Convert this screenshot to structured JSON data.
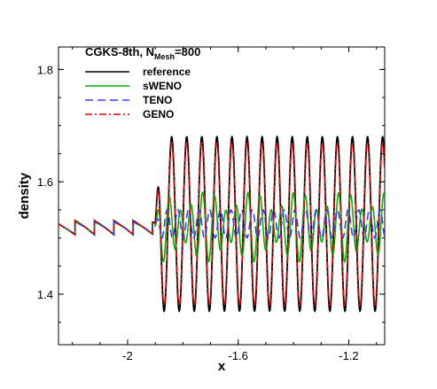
{
  "chart_data": {
    "type": "line",
    "legend_title": {
      "main": "CGKS-8th, N",
      "sub": "Mesh",
      "tail": "=800"
    },
    "xlabel": "x",
    "ylabel": "density",
    "xlim": [
      -2.25,
      -1.07
    ],
    "ylim": [
      1.31,
      1.84
    ],
    "x_ticks": [
      -2,
      -1.6,
      -1.2
    ],
    "x_tick_labels": [
      "-2",
      "-1.6",
      "-1.2"
    ],
    "y_ticks": [
      1.4,
      1.6,
      1.8
    ],
    "y_tick_labels": [
      "1.4",
      "1.6",
      "1.8"
    ],
    "legend_position": "top-left",
    "shock_x": -1.9,
    "series": [
      {
        "name": "reference",
        "color": "#000000",
        "dash": "solid",
        "pre_shock": {
          "x": [
            -2.25,
            -2.22,
            -2.19,
            -2.19,
            -2.15,
            -2.12,
            -2.12,
            -2.08,
            -2.05,
            -2.05,
            -2.01,
            -1.98,
            -1.98,
            -1.94,
            -1.91,
            -1.91,
            -1.9
          ],
          "y": [
            1.525,
            1.516,
            1.506,
            1.531,
            1.518,
            1.506,
            1.531,
            1.518,
            1.506,
            1.531,
            1.518,
            1.506,
            1.531,
            1.518,
            1.507,
            1.528,
            1.528
          ]
        },
        "post_shock": {
          "amplitude": 0.155,
          "center": 1.525,
          "wavelength": 0.0545,
          "phase": 1.0
        }
      },
      {
        "name": "sWENO",
        "color": "#00b400",
        "dash": "solid",
        "pre_shock": {
          "x": [
            -2.25,
            -2.22,
            -2.19,
            -2.19,
            -2.15,
            -2.12,
            -2.12,
            -2.08,
            -2.05,
            -2.05,
            -2.01,
            -1.98,
            -1.98,
            -1.94,
            -1.91,
            -1.91,
            -1.9
          ],
          "y": [
            1.525,
            1.516,
            1.507,
            1.529,
            1.518,
            1.507,
            1.529,
            1.518,
            1.507,
            1.529,
            1.518,
            1.507,
            1.529,
            1.518,
            1.508,
            1.526,
            1.526
          ]
        },
        "post_shock": {
          "amplitude": 0.045,
          "center": 1.52,
          "wavelength": 0.041,
          "phase": 0.3
        }
      },
      {
        "name": "TENO",
        "color": "#3c3cff",
        "dash": "dashed",
        "pre_shock": {
          "x": [
            -2.25,
            -2.22,
            -2.19,
            -2.19,
            -2.15,
            -2.12,
            -2.12,
            -2.08,
            -2.05,
            -2.05,
            -2.01,
            -1.98,
            -1.98,
            -1.94,
            -1.91,
            -1.91,
            -1.9
          ],
          "y": [
            1.525,
            1.516,
            1.507,
            1.529,
            1.518,
            1.507,
            1.529,
            1.518,
            1.507,
            1.529,
            1.518,
            1.507,
            1.529,
            1.518,
            1.508,
            1.526,
            1.526
          ]
        },
        "post_shock": {
          "amplitude": 0.025,
          "center": 1.525,
          "wavelength": 0.0385,
          "phase": 0.8
        }
      },
      {
        "name": "GENO",
        "color": "#e00000",
        "dash": "dashdot",
        "pre_shock": {
          "x": [
            -2.25,
            -2.22,
            -2.19,
            -2.19,
            -2.15,
            -2.12,
            -2.12,
            -2.08,
            -2.05,
            -2.05,
            -2.01,
            -1.98,
            -1.98,
            -1.94,
            -1.91,
            -1.91,
            -1.9
          ],
          "y": [
            1.525,
            1.516,
            1.506,
            1.531,
            1.518,
            1.506,
            1.531,
            1.518,
            1.506,
            1.531,
            1.518,
            1.506,
            1.531,
            1.518,
            1.507,
            1.528,
            1.528
          ]
        },
        "post_shock": {
          "amplitude": 0.145,
          "center": 1.525,
          "wavelength": 0.0545,
          "phase": 1.0
        }
      }
    ]
  }
}
